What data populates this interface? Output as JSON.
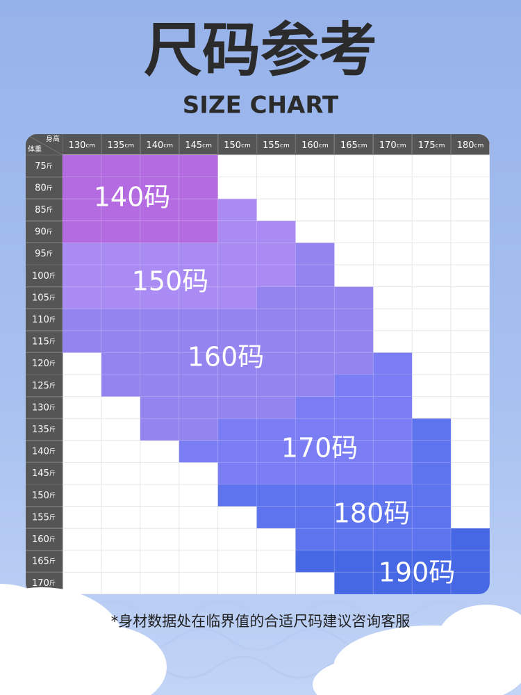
{
  "header": {
    "title": "尺码参考",
    "subtitle": "SIZE CHART"
  },
  "table": {
    "corner": {
      "top": "身高",
      "bottom": "体重"
    },
    "columns": [
      "130cm",
      "135cm",
      "140cm",
      "145cm",
      "150cm",
      "155cm",
      "160cm",
      "165cm",
      "170cm",
      "175cm",
      "180cm"
    ],
    "rows": [
      "75斤",
      "80斤",
      "85斤",
      "90斤",
      "95斤",
      "100斤",
      "105斤",
      "110斤",
      "115斤",
      "120斤",
      "125斤",
      "130斤",
      "135斤",
      "140斤",
      "145斤",
      "150斤",
      "155斤",
      "160斤",
      "165斤",
      "170斤"
    ],
    "sizes": [
      {
        "label": "140码",
        "color": "#b46be2",
        "cells": [
          [
            0,
            0,
            3
          ],
          [
            1,
            0,
            3
          ],
          [
            2,
            0,
            3
          ],
          [
            3,
            0,
            3
          ]
        ]
      },
      {
        "label": "150码",
        "color": "#a98bf3",
        "cells": [
          [
            0,
            4,
            6
          ],
          [
            1,
            4,
            6
          ],
          [
            2,
            4,
            6
          ],
          [
            3,
            4,
            6
          ],
          [
            4,
            2,
            6
          ],
          [
            5,
            3,
            5
          ]
        ]
      },
      {
        "label": "160码",
        "color": "#9384ef",
        "cells": [
          [
            0,
            7,
            8
          ],
          [
            1,
            7,
            10
          ],
          [
            2,
            7,
            12
          ],
          [
            3,
            7,
            12
          ],
          [
            4,
            7,
            11
          ],
          [
            5,
            6,
            11
          ],
          [
            6,
            4,
            10
          ],
          [
            7,
            6,
            9
          ]
        ]
      },
      {
        "label": "170码",
        "color": "#7b7df4",
        "cells": [
          [
            3,
            13,
            13
          ],
          [
            4,
            12,
            14
          ],
          [
            5,
            12,
            14
          ],
          [
            6,
            11,
            14
          ],
          [
            7,
            10,
            14
          ],
          [
            8,
            9,
            14
          ]
        ]
      },
      {
        "label": "180码",
        "color": "#5e73ee",
        "cells": [
          [
            4,
            15,
            15
          ],
          [
            5,
            15,
            16
          ],
          [
            6,
            15,
            17
          ],
          [
            7,
            15,
            17
          ],
          [
            8,
            15,
            17
          ],
          [
            9,
            12,
            17
          ]
        ]
      },
      {
        "label": "190码",
        "color": "#4768e4",
        "cells": [
          [
            6,
            18,
            18
          ],
          [
            7,
            18,
            19
          ],
          [
            8,
            18,
            19
          ],
          [
            9,
            18,
            19
          ],
          [
            10,
            17,
            19
          ]
        ]
      }
    ]
  },
  "footnote": "*身材数据处在临界值的合适尺码建议咨询客服"
}
